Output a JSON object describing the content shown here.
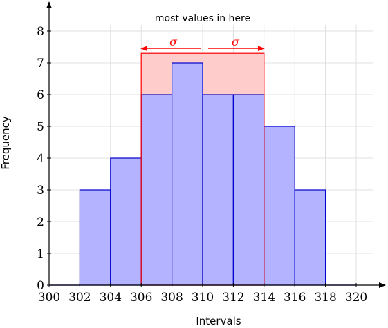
{
  "chart_data": {
    "type": "bar",
    "subtype": "histogram",
    "bin_edges": [
      300,
      302,
      304,
      306,
      308,
      310,
      312,
      314,
      316,
      318,
      320
    ],
    "values": [
      0,
      3,
      4,
      6,
      7,
      6,
      6,
      5,
      3,
      0
    ],
    "xlabel": "Intervals",
    "ylabel": "Frequency",
    "xlim": [
      300,
      322
    ],
    "ylim": [
      0,
      8.8
    ],
    "x_ticks": [
      300,
      302,
      304,
      306,
      308,
      310,
      312,
      314,
      316,
      318,
      320
    ],
    "y_ticks": [
      0,
      1,
      2,
      3,
      4,
      5,
      6,
      7,
      8
    ],
    "grid": true,
    "colors": {
      "bar_fill": "#b3b3ff",
      "bar_stroke": "#0000cc",
      "highlight_fill": "#ffcccc",
      "highlight_stroke": "#ff0000",
      "grid": "#d9d9d9",
      "axis": "#000000"
    },
    "highlight_region": {
      "x_start": 306,
      "x_end": 314,
      "y_top": 7.3,
      "center": 310,
      "sigma_symbol": "σ",
      "label": "most values in here"
    }
  }
}
